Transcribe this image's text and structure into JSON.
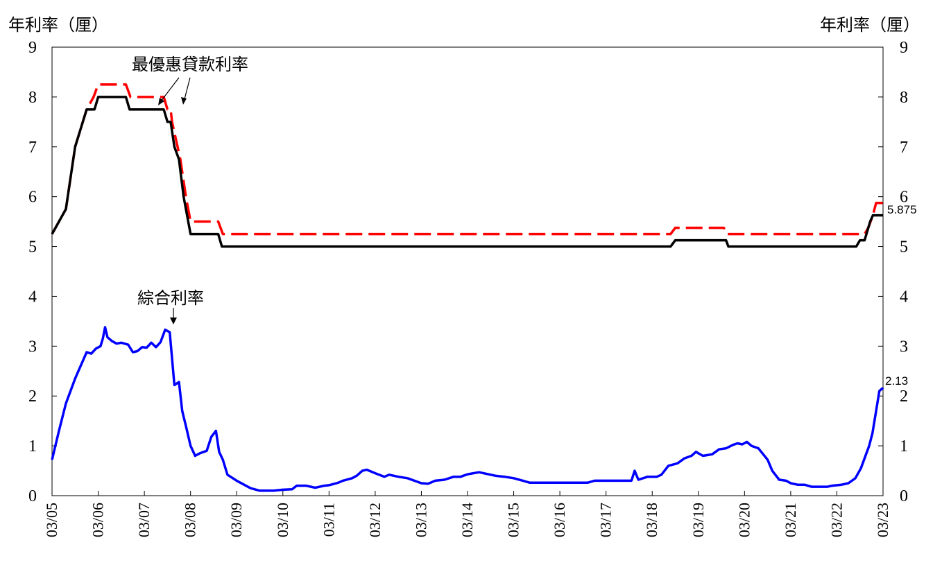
{
  "chart_data": {
    "type": "line",
    "ylabel_left": "年利率（厘）",
    "ylabel_right": "年利率（厘）",
    "ylim": [
      0,
      9
    ],
    "yticks": [
      0,
      1,
      2,
      3,
      4,
      5,
      6,
      7,
      8,
      9
    ],
    "xlim": [
      2005.0,
      2023.0
    ],
    "x_ticks": [
      {
        "label": "03/05",
        "x": 2005.0
      },
      {
        "label": "03/06",
        "x": 2006.0
      },
      {
        "label": "03/07",
        "x": 2007.0
      },
      {
        "label": "03/08",
        "x": 2008.0
      },
      {
        "label": "03/09",
        "x": 2009.0
      },
      {
        "label": "03/10",
        "x": 2010.0
      },
      {
        "label": "03/11",
        "x": 2011.0
      },
      {
        "label": "03/12",
        "x": 2012.0
      },
      {
        "label": "03/13",
        "x": 2013.0
      },
      {
        "label": "03/14",
        "x": 2014.0
      },
      {
        "label": "03/15",
        "x": 2015.0
      },
      {
        "label": "03/16",
        "x": 2016.0
      },
      {
        "label": "03/17",
        "x": 2017.0
      },
      {
        "label": "03/18",
        "x": 2018.0
      },
      {
        "label": "03/19",
        "x": 2019.0
      },
      {
        "label": "03/20",
        "x": 2020.0
      },
      {
        "label": "03/21",
        "x": 2021.0
      },
      {
        "label": "03/22",
        "x": 2022.0
      },
      {
        "label": "03/23",
        "x": 2023.0
      }
    ],
    "grid": false,
    "series": [
      {
        "key": "prime_red",
        "color": "#ff0000",
        "style": "dashed",
        "points": [
          [
            2005.0,
            5.25
          ],
          [
            2005.3,
            5.75
          ],
          [
            2005.5,
            7.0
          ],
          [
            2005.75,
            7.75
          ],
          [
            2005.9,
            8.0
          ],
          [
            2006.0,
            8.25
          ],
          [
            2006.6,
            8.25
          ],
          [
            2006.7,
            8.0
          ],
          [
            2007.42,
            8.0
          ],
          [
            2007.5,
            7.75
          ],
          [
            2007.57,
            7.75
          ],
          [
            2007.6,
            7.5
          ],
          [
            2007.72,
            7.0
          ],
          [
            2007.78,
            6.75
          ],
          [
            2007.9,
            6.0
          ],
          [
            2008.0,
            5.5
          ],
          [
            2008.6,
            5.5
          ],
          [
            2008.7,
            5.25
          ],
          [
            2018.4,
            5.25
          ],
          [
            2018.5,
            5.375
          ],
          [
            2019.55,
            5.375
          ],
          [
            2019.62,
            5.25
          ],
          [
            2022.6,
            5.25
          ],
          [
            2022.68,
            5.375
          ],
          [
            2022.78,
            5.625
          ],
          [
            2022.85,
            5.875
          ],
          [
            2023.0,
            5.875
          ]
        ]
      },
      {
        "key": "prime_black",
        "color": "#000000",
        "style": "solid",
        "points": [
          [
            2005.0,
            5.25
          ],
          [
            2005.3,
            5.75
          ],
          [
            2005.5,
            7.0
          ],
          [
            2005.75,
            7.75
          ],
          [
            2005.92,
            7.75
          ],
          [
            2006.0,
            8.0
          ],
          [
            2006.6,
            8.0
          ],
          [
            2006.68,
            7.75
          ],
          [
            2007.42,
            7.75
          ],
          [
            2007.5,
            7.5
          ],
          [
            2007.57,
            7.5
          ],
          [
            2007.65,
            7.0
          ],
          [
            2007.75,
            6.75
          ],
          [
            2007.85,
            6.0
          ],
          [
            2008.0,
            5.25
          ],
          [
            2008.6,
            5.25
          ],
          [
            2008.68,
            5.0
          ],
          [
            2018.4,
            5.0
          ],
          [
            2018.5,
            5.125
          ],
          [
            2019.6,
            5.125
          ],
          [
            2019.65,
            5.0
          ],
          [
            2022.42,
            5.0
          ],
          [
            2022.5,
            5.125
          ],
          [
            2022.6,
            5.125
          ],
          [
            2022.72,
            5.5
          ],
          [
            2022.78,
            5.625
          ],
          [
            2023.0,
            5.625
          ]
        ]
      },
      {
        "key": "composite_blue",
        "color": "#0000ff",
        "style": "solid",
        "points": [
          [
            2005.0,
            0.72
          ],
          [
            2005.15,
            1.3
          ],
          [
            2005.3,
            1.85
          ],
          [
            2005.5,
            2.35
          ],
          [
            2005.75,
            2.88
          ],
          [
            2005.85,
            2.85
          ],
          [
            2005.95,
            2.95
          ],
          [
            2006.05,
            3.0
          ],
          [
            2006.1,
            3.15
          ],
          [
            2006.15,
            3.38
          ],
          [
            2006.2,
            3.18
          ],
          [
            2006.3,
            3.1
          ],
          [
            2006.4,
            3.05
          ],
          [
            2006.5,
            3.07
          ],
          [
            2006.65,
            3.03
          ],
          [
            2006.75,
            2.88
          ],
          [
            2006.85,
            2.9
          ],
          [
            2006.95,
            2.98
          ],
          [
            2007.05,
            2.97
          ],
          [
            2007.15,
            3.07
          ],
          [
            2007.25,
            2.98
          ],
          [
            2007.35,
            3.08
          ],
          [
            2007.45,
            3.33
          ],
          [
            2007.55,
            3.28
          ],
          [
            2007.65,
            2.22
          ],
          [
            2007.75,
            2.28
          ],
          [
            2007.82,
            1.7
          ],
          [
            2007.9,
            1.4
          ],
          [
            2008.0,
            1.0
          ],
          [
            2008.1,
            0.8
          ],
          [
            2008.2,
            0.85
          ],
          [
            2008.35,
            0.9
          ],
          [
            2008.45,
            1.18
          ],
          [
            2008.55,
            1.3
          ],
          [
            2008.62,
            0.88
          ],
          [
            2008.7,
            0.72
          ],
          [
            2008.8,
            0.42
          ],
          [
            2009.0,
            0.3
          ],
          [
            2009.3,
            0.15
          ],
          [
            2009.5,
            0.1
          ],
          [
            2009.8,
            0.1
          ],
          [
            2010.0,
            0.12
          ],
          [
            2010.2,
            0.13
          ],
          [
            2010.3,
            0.2
          ],
          [
            2010.5,
            0.2
          ],
          [
            2010.7,
            0.16
          ],
          [
            2010.9,
            0.2
          ],
          [
            2011.0,
            0.21
          ],
          [
            2011.2,
            0.26
          ],
          [
            2011.3,
            0.3
          ],
          [
            2011.5,
            0.35
          ],
          [
            2011.6,
            0.4
          ],
          [
            2011.72,
            0.5
          ],
          [
            2011.82,
            0.52
          ],
          [
            2012.0,
            0.45
          ],
          [
            2012.2,
            0.38
          ],
          [
            2012.3,
            0.42
          ],
          [
            2012.5,
            0.38
          ],
          [
            2012.7,
            0.35
          ],
          [
            2013.0,
            0.25
          ],
          [
            2013.15,
            0.24
          ],
          [
            2013.3,
            0.3
          ],
          [
            2013.5,
            0.32
          ],
          [
            2013.7,
            0.38
          ],
          [
            2013.85,
            0.38
          ],
          [
            2014.0,
            0.43
          ],
          [
            2014.25,
            0.47
          ],
          [
            2014.45,
            0.43
          ],
          [
            2014.6,
            0.4
          ],
          [
            2014.8,
            0.38
          ],
          [
            2015.0,
            0.35
          ],
          [
            2015.2,
            0.3
          ],
          [
            2015.35,
            0.26
          ],
          [
            2016.6,
            0.26
          ],
          [
            2016.75,
            0.3
          ],
          [
            2017.4,
            0.3
          ],
          [
            2017.55,
            0.3
          ],
          [
            2017.62,
            0.5
          ],
          [
            2017.7,
            0.32
          ],
          [
            2017.9,
            0.38
          ],
          [
            2018.1,
            0.38
          ],
          [
            2018.2,
            0.42
          ],
          [
            2018.35,
            0.6
          ],
          [
            2018.55,
            0.65
          ],
          [
            2018.7,
            0.75
          ],
          [
            2018.85,
            0.8
          ],
          [
            2018.95,
            0.88
          ],
          [
            2019.0,
            0.85
          ],
          [
            2019.1,
            0.8
          ],
          [
            2019.3,
            0.83
          ],
          [
            2019.45,
            0.93
          ],
          [
            2019.6,
            0.95
          ],
          [
            2019.75,
            1.02
          ],
          [
            2019.85,
            1.05
          ],
          [
            2019.95,
            1.03
          ],
          [
            2020.05,
            1.08
          ],
          [
            2020.15,
            1.0
          ],
          [
            2020.3,
            0.95
          ],
          [
            2020.5,
            0.72
          ],
          [
            2020.6,
            0.5
          ],
          [
            2020.75,
            0.32
          ],
          [
            2020.9,
            0.3
          ],
          [
            2021.0,
            0.25
          ],
          [
            2021.15,
            0.22
          ],
          [
            2021.3,
            0.22
          ],
          [
            2021.45,
            0.18
          ],
          [
            2021.6,
            0.18
          ],
          [
            2021.8,
            0.18
          ],
          [
            2021.9,
            0.2
          ],
          [
            2022.1,
            0.22
          ],
          [
            2022.25,
            0.25
          ],
          [
            2022.4,
            0.35
          ],
          [
            2022.52,
            0.55
          ],
          [
            2022.62,
            0.8
          ],
          [
            2022.7,
            1.0
          ],
          [
            2022.77,
            1.25
          ],
          [
            2022.85,
            1.7
          ],
          [
            2022.92,
            2.1
          ],
          [
            2022.98,
            2.15
          ],
          [
            2023.0,
            2.13
          ]
        ]
      }
    ],
    "annotations": {
      "prime_label": "最優惠貸款利率",
      "composite_label": "綜合利率",
      "end_label_prime": "5.875",
      "end_label_composite": "2.13"
    }
  }
}
